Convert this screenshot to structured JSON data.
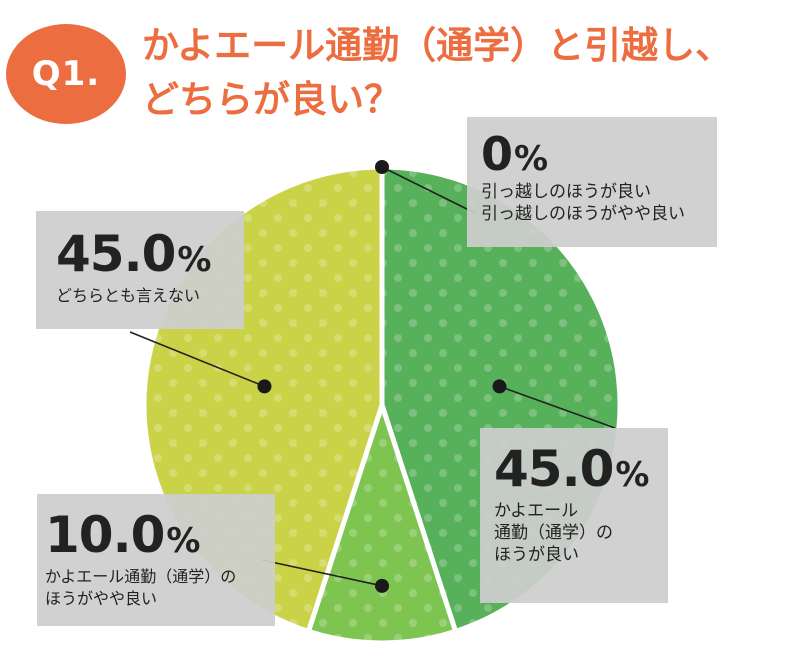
{
  "question": {
    "badge": "Q1.",
    "line1": "かよエール通勤（通学）と引越し、",
    "line2": "どちらが良い？"
  },
  "colors": {
    "accent": "#ec6d3f",
    "slice_commute_better": "#57b05a",
    "slice_commute_somewhat": "#7dc451",
    "slice_neither": "#cad248",
    "label_box": "#cdcdcd"
  },
  "chart_data": {
    "type": "pie",
    "title": "かよエール通勤（通学）と引越し、どちらが良い？",
    "start_angle_deg": 0,
    "direction": "clockwise",
    "slices": [
      {
        "label": "引っ越しのほうが良い／引っ越しのほうがやや良い",
        "value": 0,
        "color": "#57b05a"
      },
      {
        "label": "かよエール通勤（通学）のほうが良い",
        "value": 45.0,
        "color": "#57b05a"
      },
      {
        "label": "かよエール通勤（通学）のほうがやや良い",
        "value": 10.0,
        "color": "#7dc451"
      },
      {
        "label": "どちらとも言えない",
        "value": 45.0,
        "color": "#cad248"
      }
    ],
    "annotations": {
      "top_right": {
        "percent": "0",
        "lines": [
          "引っ越しのほうが良い",
          "引っ越しのほうがやや良い"
        ]
      },
      "right": {
        "percent": "45.0",
        "lines": [
          "かよエール",
          "通勤（通学）の",
          "ほうが良い"
        ]
      },
      "bottom": {
        "percent": "10.0",
        "lines": [
          "かよエール通勤（通学）の",
          "ほうがやや良い"
        ]
      },
      "left": {
        "percent": "45.0",
        "lines": [
          "どちらとも言えない"
        ]
      }
    }
  }
}
